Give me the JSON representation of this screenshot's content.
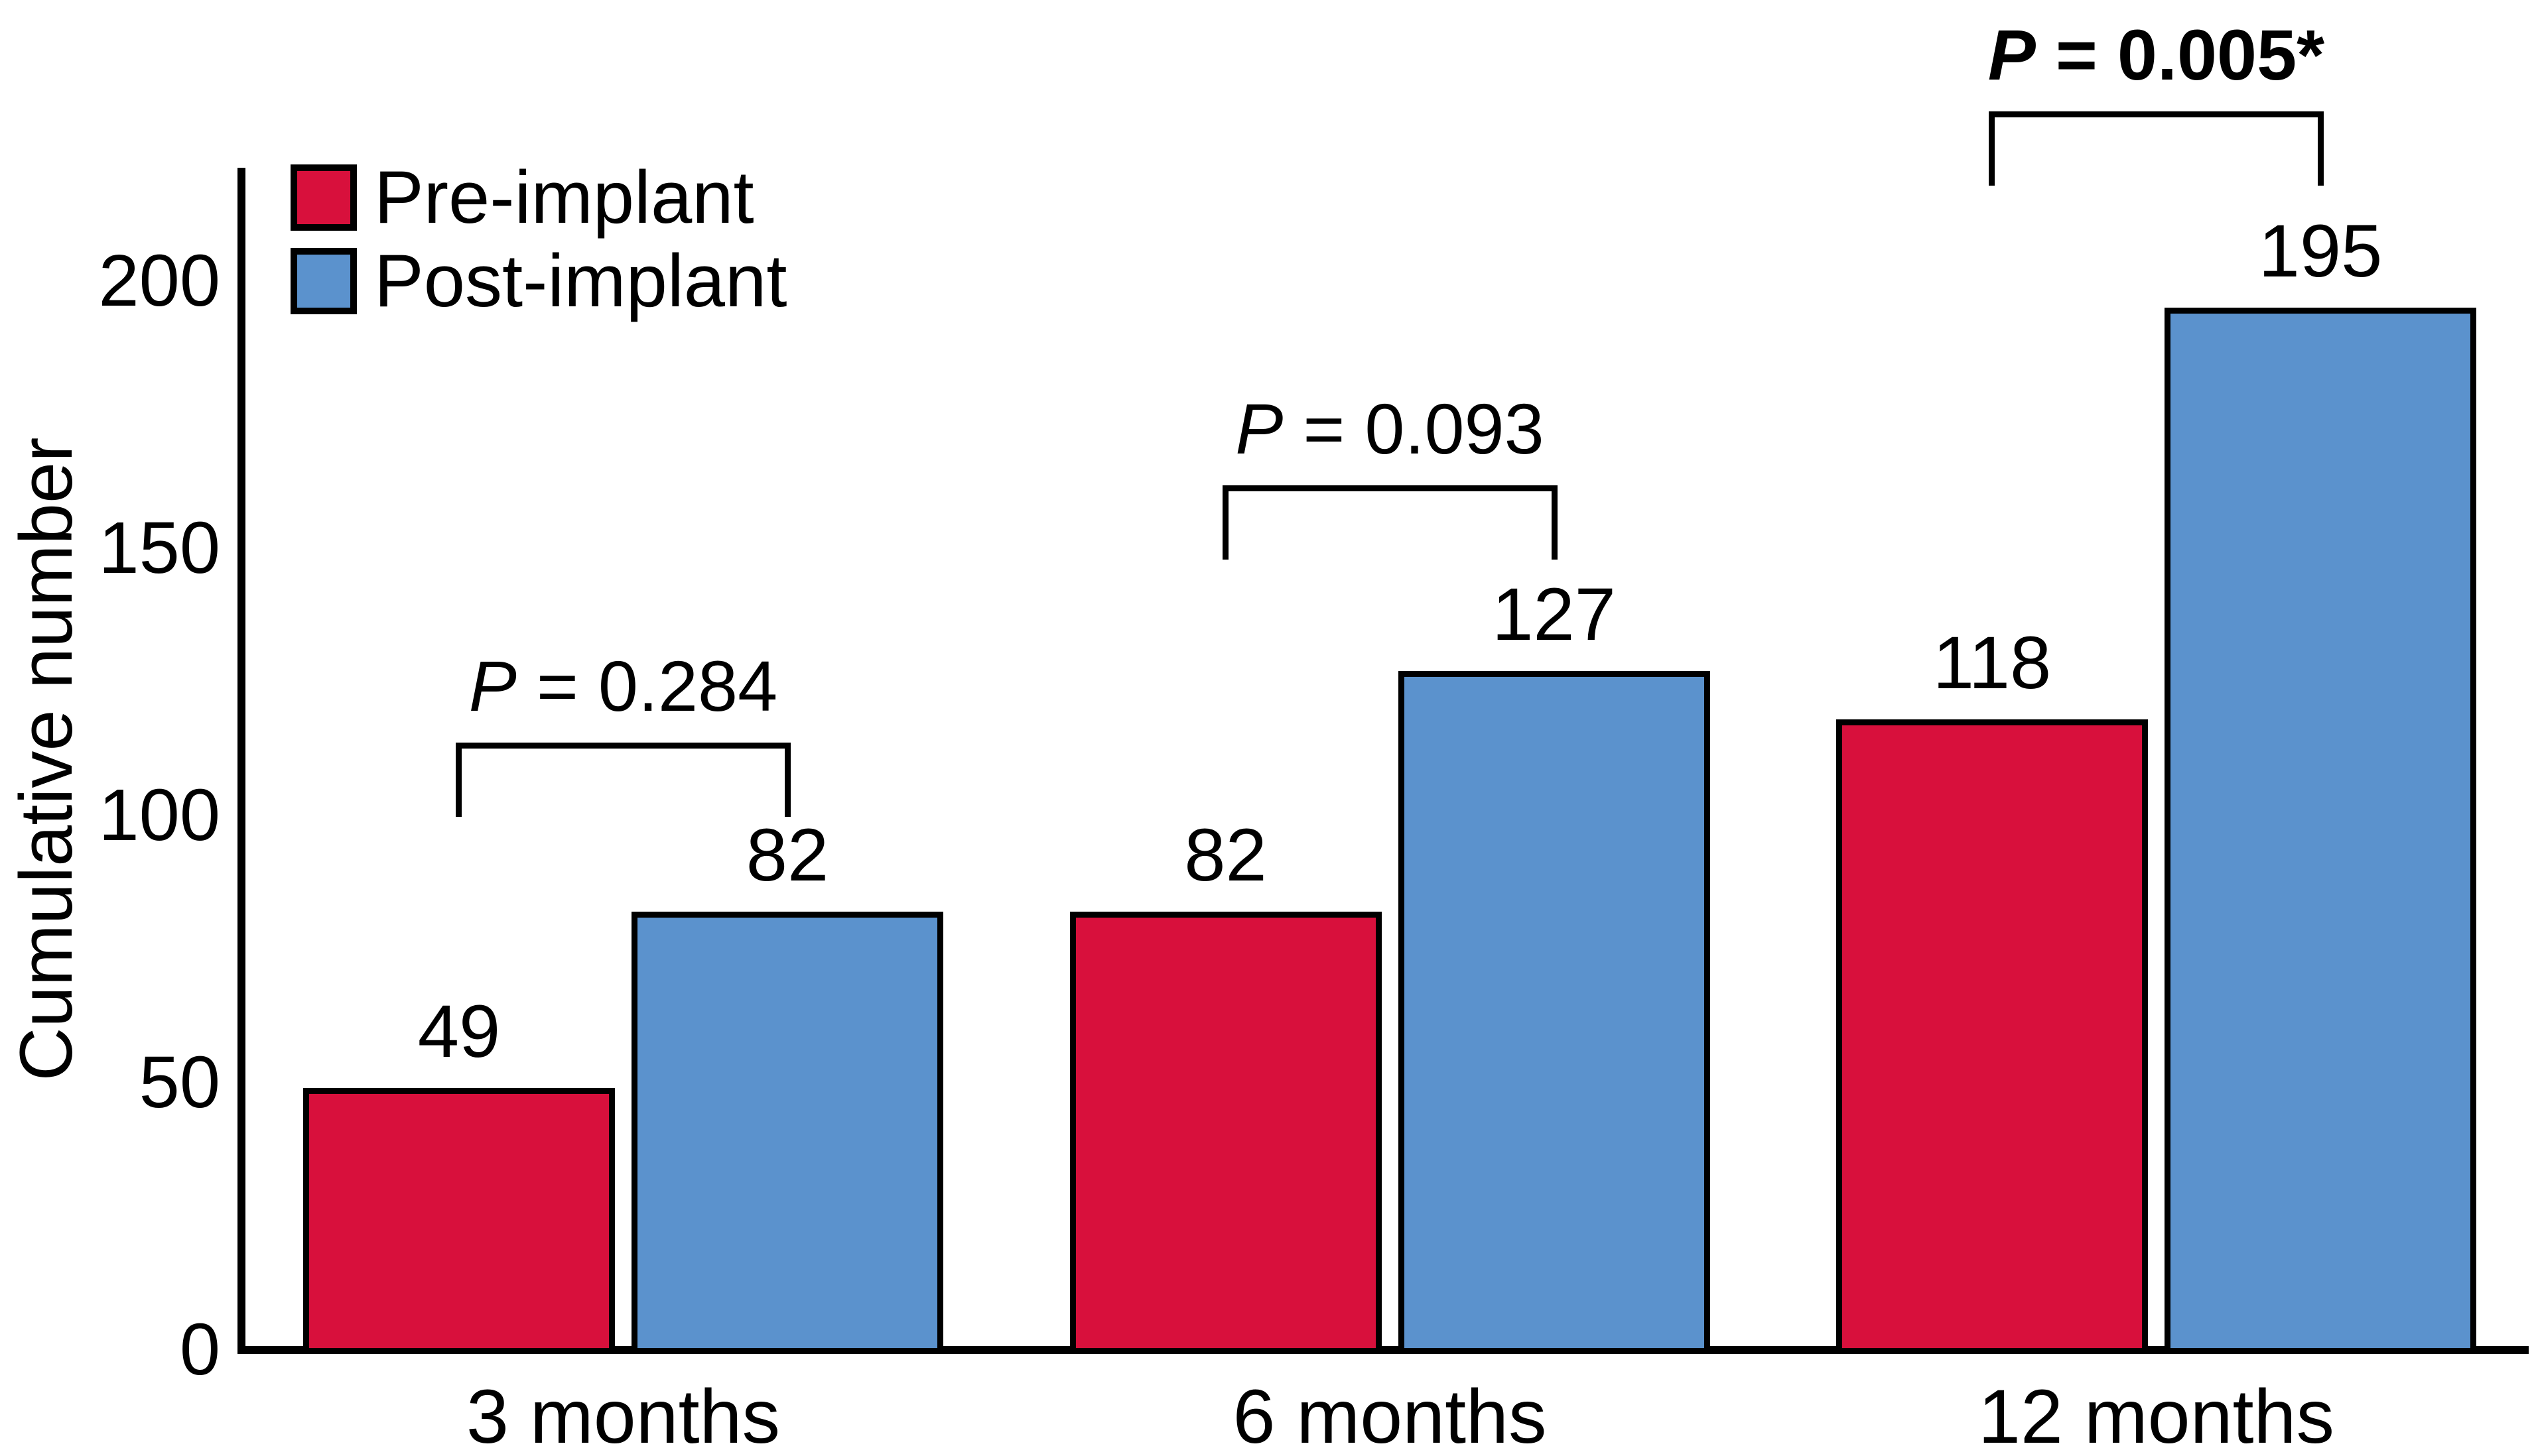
{
  "chart_data": {
    "type": "bar",
    "title": "",
    "xlabel": "",
    "ylabel": "Cumulative number",
    "categories": [
      "3 months",
      "6 months",
      "12 months"
    ],
    "series": [
      {
        "name": "Pre-implant",
        "color": "#d8103c",
        "values": [
          49,
          82,
          118
        ]
      },
      {
        "name": "Post-implant",
        "color": "#5b92cd",
        "values": [
          82,
          127,
          195
        ]
      }
    ],
    "bar_value_labels": [
      [
        "49",
        "82",
        "118"
      ],
      [
        "82",
        "127",
        "195"
      ]
    ],
    "ytick_labels": [
      "0",
      "50",
      "100",
      "150",
      "200"
    ],
    "yticks": [
      0,
      50,
      100,
      150,
      200
    ],
    "ylim": [
      0,
      221
    ],
    "grid": false,
    "legend_position": "top-left",
    "annotations": [
      {
        "group": "3 months",
        "label": "P = 0.284",
        "significant": false
      },
      {
        "group": "6 months",
        "label": "P = 0.093",
        "significant": false
      },
      {
        "group": "12 months",
        "label": "P = 0.005*",
        "significant": true
      }
    ]
  }
}
